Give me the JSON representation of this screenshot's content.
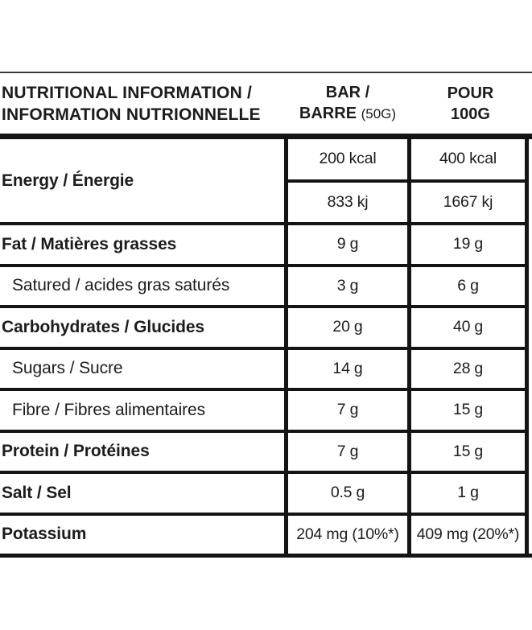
{
  "colors": {
    "ink": "#1c1c1c",
    "line": "#141414",
    "background": "#ffffff"
  },
  "header": {
    "title_line1": "NUTRITIONAL INFORMATION /",
    "title_line2": "INFORMATION NUTRIONNELLE",
    "bar_col_line1": "BAR /",
    "bar_col_name": "BARRE",
    "bar_col_note": "(50G)",
    "per100_col_line1": "POUR",
    "per100_col_line2": "100G"
  },
  "energy": {
    "label": "Energy / Énergie",
    "bar_kcal": "200 kcal",
    "per100_kcal": "400 kcal",
    "bar_kj": "833 kj",
    "per100_kj": "1667 kj"
  },
  "rows": [
    {
      "label": "Fat / Matières grasses",
      "emphasis": true,
      "bar": "9 g",
      "per100": "19 g"
    },
    {
      "label": "Satured / acides gras saturés",
      "emphasis": false,
      "bar": "3 g",
      "per100": "6 g"
    },
    {
      "label": "Carbohydrates / Glucides",
      "emphasis": true,
      "bar": "20 g",
      "per100": "40 g"
    },
    {
      "label": "Sugars / Sucre",
      "emphasis": false,
      "bar": "14 g",
      "per100": "28 g"
    },
    {
      "label": "Fibre / Fibres alimentaires",
      "emphasis": false,
      "bar": "7 g",
      "per100": "15 g"
    },
    {
      "label": "Protein / Protéines",
      "emphasis": true,
      "bar": "7 g",
      "per100": "15 g"
    },
    {
      "label": "Salt / Sel",
      "emphasis": true,
      "bar": "0.5 g",
      "per100": "1 g"
    },
    {
      "label": "Potassium",
      "emphasis": true,
      "bar": "204 mg (10%*)",
      "per100": "409 mg (20%*)"
    }
  ]
}
